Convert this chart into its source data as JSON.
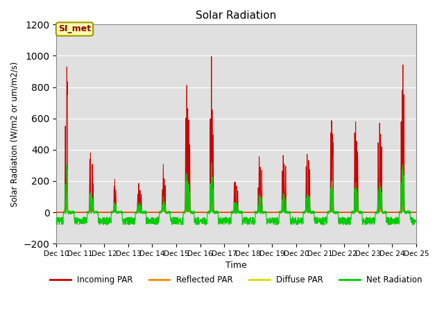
{
  "title": "Solar Radiation",
  "xlabel": "Time",
  "ylabel": "Solar Radiation (W/m2 or um/m2/s)",
  "ylim": [
    -200,
    1200
  ],
  "xlim_days": [
    10,
    25
  ],
  "yticks": [
    -200,
    0,
    200,
    400,
    600,
    800,
    1000,
    1200
  ],
  "xtick_labels": [
    "Dec 10",
    "Dec 11",
    "Dec 12",
    "Dec 13",
    "Dec 14",
    "Dec 15",
    "Dec 16",
    "Dec 17",
    "Dec 18",
    "Dec 19",
    "Dec 20",
    "Dec 21",
    "Dec 22",
    "Dec 23",
    "Dec 24",
    "Dec 25"
  ],
  "colors": {
    "incoming": "#cc0000",
    "reflected": "#ff8800",
    "diffuse": "#dddd00",
    "net": "#00cc00"
  },
  "legend_labels": [
    "Incoming PAR",
    "Reflected PAR",
    "Diffuse PAR",
    "Net Radiation"
  ],
  "bg_color": "#e0e0e0",
  "fig_color": "#ffffff",
  "annotation_text": "SI_met",
  "annotation_bg": "#ffffaa",
  "annotation_border": "#999900"
}
